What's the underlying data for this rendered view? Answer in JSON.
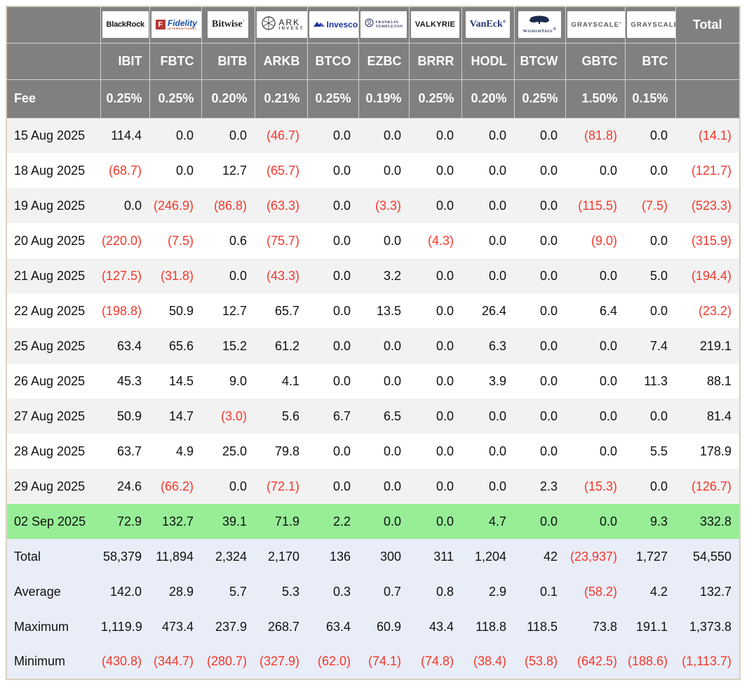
{
  "colors": {
    "header_bg": "#808080",
    "header_text": "#ffffff",
    "negative_red": "#f5362a",
    "stripe_gray": "#f2f2f2",
    "highlight_green": "#97ee97",
    "summary_blue": "#e9edf8",
    "outer_border_tan": "#d9d2c0"
  },
  "logos": {
    "blackrock": {
      "text": "BlackRock"
    },
    "fidelity": {
      "letter": "F",
      "text": "Fidelity",
      "sub": "INTERNATIONAL"
    },
    "bitwise": {
      "text": "Bitwise"
    },
    "ark": {
      "top": "ARK",
      "bottom": "INVEST"
    },
    "invesco": {
      "text": "Invesco"
    },
    "franklin": {
      "line1": "FRANKLIN",
      "line2": "TEMPLETON"
    },
    "valkyrie": {
      "text": "VALKYRIE"
    },
    "vaneck": {
      "text": "VanEck"
    },
    "wisdomtree": {
      "text": "WisdomTree"
    },
    "grayscale": {
      "text": "GRAYSCALE"
    }
  },
  "chart_data": {
    "type": "table",
    "providers": [
      "BlackRock",
      "Fidelity",
      "Bitwise",
      "ARK Invest",
      "Invesco",
      "Franklin Templeton",
      "Valkyrie",
      "VanEck",
      "WisdomTree",
      "Grayscale",
      "Grayscale"
    ],
    "provider_logo_keys": [
      "blackrock",
      "fidelity",
      "bitwise",
      "ark",
      "invesco",
      "franklin",
      "valkyrie",
      "vaneck",
      "wisdomtree",
      "grayscale",
      "grayscale"
    ],
    "tickers": [
      "IBIT",
      "FBTC",
      "BITB",
      "ARKB",
      "BTCO",
      "EZBC",
      "BRRR",
      "HODL",
      "BTCW",
      "GBTC",
      "BTC"
    ],
    "fee_label": "Fee",
    "fees": [
      "0.25%",
      "0.25%",
      "0.20%",
      "0.21%",
      "0.25%",
      "0.19%",
      "0.25%",
      "0.20%",
      "0.25%",
      "1.50%",
      "0.15%"
    ],
    "total_column_label": "Total",
    "highlighted_row": "02 Sep 2025",
    "rows": [
      {
        "date": "15 Aug 2025",
        "values": [
          "114.4",
          "0.0",
          "0.0",
          "(46.7)",
          "0.0",
          "0.0",
          "0.0",
          "0.0",
          "0.0",
          "(81.8)",
          "0.0"
        ],
        "total": "(14.1)"
      },
      {
        "date": "18 Aug 2025",
        "values": [
          "(68.7)",
          "0.0",
          "12.7",
          "(65.7)",
          "0.0",
          "0.0",
          "0.0",
          "0.0",
          "0.0",
          "0.0",
          "0.0"
        ],
        "total": "(121.7)"
      },
      {
        "date": "19 Aug 2025",
        "values": [
          "0.0",
          "(246.9)",
          "(86.8)",
          "(63.3)",
          "0.0",
          "(3.3)",
          "0.0",
          "0.0",
          "0.0",
          "(115.5)",
          "(7.5)"
        ],
        "total": "(523.3)"
      },
      {
        "date": "20 Aug 2025",
        "values": [
          "(220.0)",
          "(7.5)",
          "0.6",
          "(75.7)",
          "0.0",
          "0.0",
          "(4.3)",
          "0.0",
          "0.0",
          "(9.0)",
          "0.0"
        ],
        "total": "(315.9)"
      },
      {
        "date": "21 Aug 2025",
        "values": [
          "(127.5)",
          "(31.8)",
          "0.0",
          "(43.3)",
          "0.0",
          "3.2",
          "0.0",
          "0.0",
          "0.0",
          "0.0",
          "5.0"
        ],
        "total": "(194.4)"
      },
      {
        "date": "22 Aug 2025",
        "values": [
          "(198.8)",
          "50.9",
          "12.7",
          "65.7",
          "0.0",
          "13.5",
          "0.0",
          "26.4",
          "0.0",
          "6.4",
          "0.0"
        ],
        "total": "(23.2)"
      },
      {
        "date": "25 Aug 2025",
        "values": [
          "63.4",
          "65.6",
          "15.2",
          "61.2",
          "0.0",
          "0.0",
          "0.0",
          "6.3",
          "0.0",
          "0.0",
          "7.4"
        ],
        "total": "219.1"
      },
      {
        "date": "26 Aug 2025",
        "values": [
          "45.3",
          "14.5",
          "9.0",
          "4.1",
          "0.0",
          "0.0",
          "0.0",
          "3.9",
          "0.0",
          "0.0",
          "11.3"
        ],
        "total": "88.1"
      },
      {
        "date": "27 Aug 2025",
        "values": [
          "50.9",
          "14.7",
          "(3.0)",
          "5.6",
          "6.7",
          "6.5",
          "0.0",
          "0.0",
          "0.0",
          "0.0",
          "0.0"
        ],
        "total": "81.4"
      },
      {
        "date": "28 Aug 2025",
        "values": [
          "63.7",
          "4.9",
          "25.0",
          "79.8",
          "0.0",
          "0.0",
          "0.0",
          "0.0",
          "0.0",
          "0.0",
          "5.5"
        ],
        "total": "178.9"
      },
      {
        "date": "29 Aug 2025",
        "values": [
          "24.6",
          "(66.2)",
          "0.0",
          "(72.1)",
          "0.0",
          "0.0",
          "0.0",
          "0.0",
          "2.3",
          "(15.3)",
          "0.0"
        ],
        "total": "(126.7)"
      },
      {
        "date": "02 Sep 2025",
        "values": [
          "72.9",
          "132.7",
          "39.1",
          "71.9",
          "2.2",
          "0.0",
          "0.0",
          "4.7",
          "0.0",
          "0.0",
          "9.3"
        ],
        "total": "332.8"
      }
    ],
    "summary_rows": [
      {
        "label": "Total",
        "values": [
          "58,379",
          "11,894",
          "2,324",
          "2,170",
          "136",
          "300",
          "311",
          "1,204",
          "42",
          "(23,937)",
          "1,727"
        ],
        "total": "54,550"
      },
      {
        "label": "Average",
        "values": [
          "142.0",
          "28.9",
          "5.7",
          "5.3",
          "0.3",
          "0.7",
          "0.8",
          "2.9",
          "0.1",
          "(58.2)",
          "4.2"
        ],
        "total": "132.7"
      },
      {
        "label": "Maximum",
        "values": [
          "1,119.9",
          "473.4",
          "237.9",
          "268.7",
          "63.4",
          "60.9",
          "43.4",
          "118.8",
          "118.5",
          "73.8",
          "191.1"
        ],
        "total": "1,373.8"
      },
      {
        "label": "Minimum",
        "values": [
          "(430.8)",
          "(344.7)",
          "(280.7)",
          "(327.9)",
          "(62.0)",
          "(74.1)",
          "(74.8)",
          "(38.4)",
          "(53.8)",
          "(642.5)",
          "(188.6)"
        ],
        "total": "(1,113.7)"
      }
    ]
  }
}
